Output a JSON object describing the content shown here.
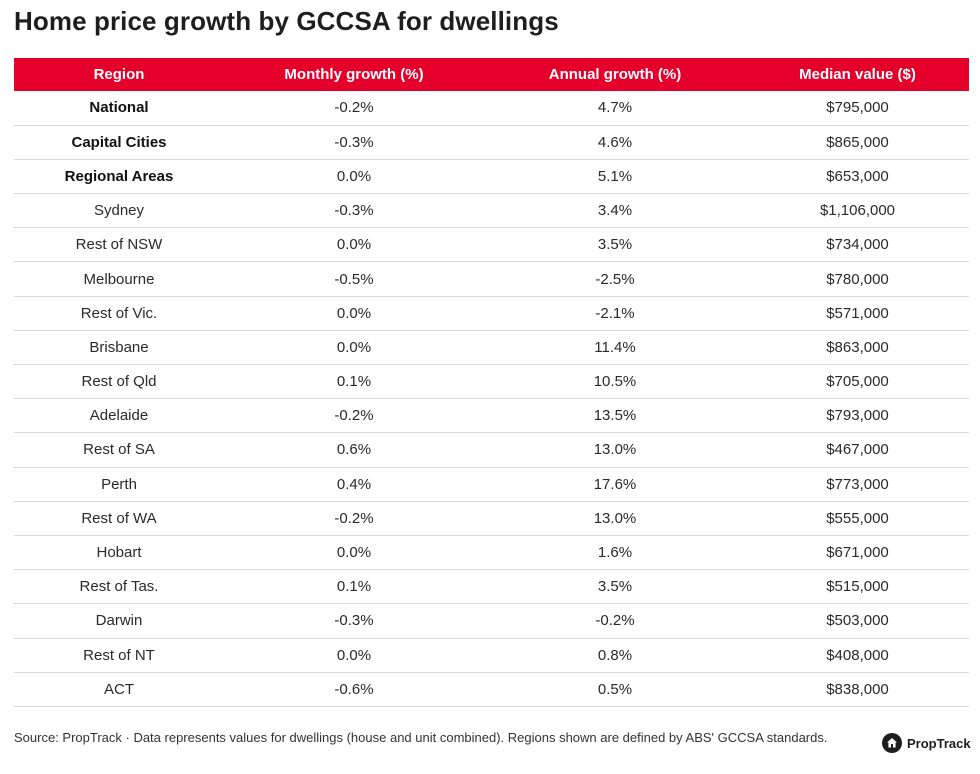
{
  "title": "Home price growth by GCCSA for dwellings",
  "chart_data": {
    "type": "table",
    "columns": [
      "Region",
      "Monthly growth (%)",
      "Annual growth (%)",
      "Median value ($)"
    ],
    "rows": [
      {
        "region": "National",
        "bold": true,
        "monthly": "-0.2%",
        "annual": "4.7%",
        "median": "$795,000"
      },
      {
        "region": "Capital Cities",
        "bold": true,
        "monthly": "-0.3%",
        "annual": "4.6%",
        "median": "$865,000"
      },
      {
        "region": "Regional Areas",
        "bold": true,
        "monthly": "0.0%",
        "annual": "5.1%",
        "median": "$653,000"
      },
      {
        "region": "Sydney",
        "bold": false,
        "monthly": "-0.3%",
        "annual": "3.4%",
        "median": "$1,106,000"
      },
      {
        "region": "Rest of NSW",
        "bold": false,
        "monthly": "0.0%",
        "annual": "3.5%",
        "median": "$734,000"
      },
      {
        "region": "Melbourne",
        "bold": false,
        "monthly": "-0.5%",
        "annual": "-2.5%",
        "median": "$780,000"
      },
      {
        "region": "Rest of Vic.",
        "bold": false,
        "monthly": "0.0%",
        "annual": "-2.1%",
        "median": "$571,000"
      },
      {
        "region": "Brisbane",
        "bold": false,
        "monthly": "0.0%",
        "annual": "11.4%",
        "median": "$863,000"
      },
      {
        "region": "Rest of Qld",
        "bold": false,
        "monthly": "0.1%",
        "annual": "10.5%",
        "median": "$705,000"
      },
      {
        "region": "Adelaide",
        "bold": false,
        "monthly": "-0.2%",
        "annual": "13.5%",
        "median": "$793,000"
      },
      {
        "region": "Rest of SA",
        "bold": false,
        "monthly": "0.6%",
        "annual": "13.0%",
        "median": "$467,000"
      },
      {
        "region": "Perth",
        "bold": false,
        "monthly": "0.4%",
        "annual": "17.6%",
        "median": "$773,000"
      },
      {
        "region": "Rest of WA",
        "bold": false,
        "monthly": "-0.2%",
        "annual": "13.0%",
        "median": "$555,000"
      },
      {
        "region": "Hobart",
        "bold": false,
        "monthly": "0.0%",
        "annual": "1.6%",
        "median": "$671,000"
      },
      {
        "region": "Rest of Tas.",
        "bold": false,
        "monthly": "0.1%",
        "annual": "3.5%",
        "median": "$515,000"
      },
      {
        "region": "Darwin",
        "bold": false,
        "monthly": "-0.3%",
        "annual": "-0.2%",
        "median": "$503,000"
      },
      {
        "region": "Rest of NT",
        "bold": false,
        "monthly": "0.0%",
        "annual": "0.8%",
        "median": "$408,000"
      },
      {
        "region": "ACT",
        "bold": false,
        "monthly": "-0.6%",
        "annual": "0.5%",
        "median": "$838,000"
      }
    ]
  },
  "footer": {
    "source": "Source: PropTrack · Data represents values for dwellings (house and unit combined). Regions shown are defined by ABS' GCCSA standards.",
    "logo_text": "PropTrack",
    "logo_icon": "house-icon"
  },
  "colors": {
    "header_bg": "#e4002b",
    "header_text": "#ffffff",
    "row_divider": "#d8d8d8"
  }
}
